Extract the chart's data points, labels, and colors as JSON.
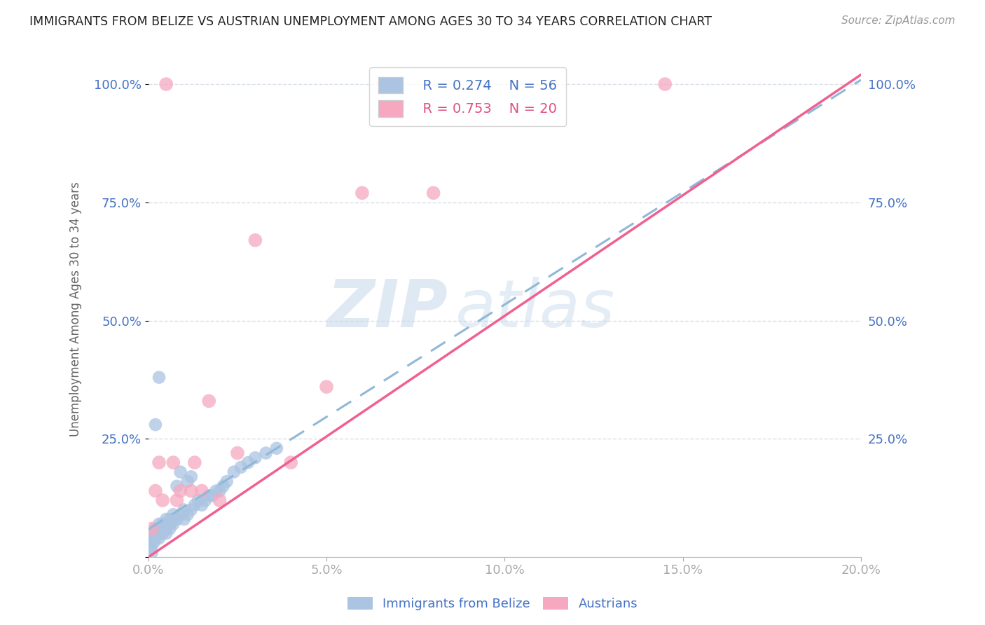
{
  "title": "IMMIGRANTS FROM BELIZE VS AUSTRIAN UNEMPLOYMENT AMONG AGES 30 TO 34 YEARS CORRELATION CHART",
  "source": "Source: ZipAtlas.com",
  "ylabel": "Unemployment Among Ages 30 to 34 years",
  "xlim": [
    0.0,
    0.2
  ],
  "ylim": [
    0.0,
    1.05
  ],
  "x_ticks": [
    0.0,
    0.05,
    0.1,
    0.15,
    0.2
  ],
  "x_tick_labels": [
    "0.0%",
    "5.0%",
    "10.0%",
    "15.0%",
    "20.0%"
  ],
  "y_ticks": [
    0.0,
    0.25,
    0.5,
    0.75,
    1.0
  ],
  "y_tick_labels": [
    "",
    "25.0%",
    "50.0%",
    "75.0%",
    "100.0%"
  ],
  "belize_color": "#aac4e2",
  "austrian_color": "#f5a8c0",
  "belize_R": 0.274,
  "belize_N": 56,
  "austrian_R": 0.753,
  "austrian_N": 20,
  "belize_x": [
    0.0005,
    0.001,
    0.001,
    0.001,
    0.0015,
    0.002,
    0.002,
    0.002,
    0.002,
    0.0025,
    0.003,
    0.003,
    0.003,
    0.003,
    0.003,
    0.0035,
    0.004,
    0.004,
    0.004,
    0.005,
    0.005,
    0.005,
    0.005,
    0.006,
    0.006,
    0.006,
    0.007,
    0.007,
    0.007,
    0.008,
    0.008,
    0.009,
    0.009,
    0.01,
    0.01,
    0.011,
    0.011,
    0.012,
    0.012,
    0.013,
    0.014,
    0.015,
    0.016,
    0.017,
    0.018,
    0.019,
    0.02,
    0.021,
    0.022,
    0.024,
    0.026,
    0.028,
    0.03,
    0.033,
    0.036,
    0.001
  ],
  "belize_y": [
    0.02,
    0.03,
    0.04,
    0.05,
    0.03,
    0.04,
    0.05,
    0.06,
    0.28,
    0.05,
    0.04,
    0.05,
    0.06,
    0.07,
    0.38,
    0.06,
    0.05,
    0.06,
    0.07,
    0.05,
    0.06,
    0.07,
    0.08,
    0.06,
    0.07,
    0.08,
    0.07,
    0.08,
    0.09,
    0.08,
    0.15,
    0.09,
    0.18,
    0.08,
    0.1,
    0.09,
    0.16,
    0.1,
    0.17,
    0.11,
    0.12,
    0.11,
    0.12,
    0.13,
    0.13,
    0.14,
    0.14,
    0.15,
    0.16,
    0.18,
    0.19,
    0.2,
    0.21,
    0.22,
    0.23,
    0.01
  ],
  "austrian_x": [
    0.001,
    0.002,
    0.003,
    0.004,
    0.005,
    0.007,
    0.008,
    0.009,
    0.012,
    0.013,
    0.015,
    0.017,
    0.02,
    0.025,
    0.03,
    0.04,
    0.05,
    0.06,
    0.145,
    0.08
  ],
  "austrian_y": [
    0.06,
    0.14,
    0.2,
    0.12,
    1.0,
    0.2,
    0.12,
    0.14,
    0.14,
    0.2,
    0.14,
    0.33,
    0.12,
    0.22,
    0.67,
    0.2,
    0.36,
    0.77,
    1.0,
    0.77
  ],
  "watermark_zip": "ZIP",
  "watermark_atlas": "atlas",
  "bg_color": "#ffffff",
  "grid_color": "#d8e0ea",
  "tick_color": "#4472c4",
  "title_color": "#222222",
  "line_blue_color": "#90b8d8",
  "line_pink_color": "#f06090"
}
